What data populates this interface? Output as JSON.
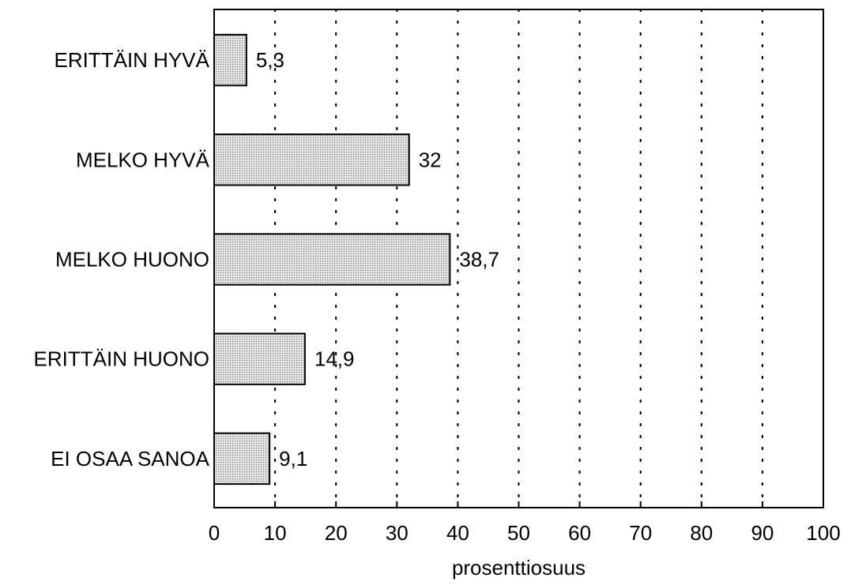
{
  "chart_data": {
    "type": "bar",
    "orientation": "horizontal",
    "categories": [
      "ERITTÄIN HYVÄ",
      "MELKO HYVÄ",
      "MELKO HUONO",
      "ERITTÄIN HUONO",
      "EI OSAA SANOA"
    ],
    "values": [
      5.3,
      32,
      38.7,
      14.9,
      9.1
    ],
    "value_labels": [
      "5,3",
      "32",
      "38,7",
      "14,9",
      "9,1"
    ],
    "xlabel": "prosenttiosuus",
    "xlim": [
      0,
      100
    ],
    "xticks": [
      0,
      10,
      20,
      30,
      40,
      50,
      60,
      70,
      80,
      90,
      100
    ],
    "grid": "vertical-dotted",
    "bar_color": "#d4d4d4",
    "bar_stroke": "#000000"
  }
}
